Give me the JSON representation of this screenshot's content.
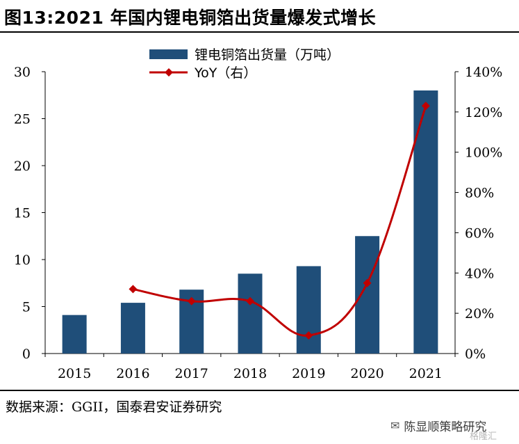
{
  "figure_title": "图13:2021 年国内锂电铜箔出货量爆发式增长",
  "source_note": "数据来源：GGII，国泰君安证券研究",
  "watermark": {
    "text": "陈显顺策略研究",
    "sub": "格隆汇"
  },
  "colors": {
    "bar": "#1f4e79",
    "line": "#c00000"
  },
  "chart_data": {
    "type": "bar",
    "categories": [
      "2015",
      "2016",
      "2017",
      "2018",
      "2019",
      "2020",
      "2021"
    ],
    "series": [
      {
        "name": "锂电铜箔出货量（万吨）",
        "type": "bar",
        "axis": "left",
        "values": [
          4.1,
          5.4,
          6.8,
          8.5,
          9.3,
          12.5,
          28.0
        ]
      },
      {
        "name": "YoY（右）",
        "type": "line",
        "axis": "right",
        "values": [
          null,
          32,
          26,
          26,
          9,
          35,
          123
        ]
      }
    ],
    "y_left": {
      "min": 0,
      "max": 30,
      "ticks": [
        "0",
        "5",
        "10",
        "15",
        "20",
        "25",
        "30"
      ]
    },
    "y_right": {
      "min": 0,
      "max": 140,
      "ticks": [
        "0%",
        "20%",
        "40%",
        "60%",
        "80%",
        "100%",
        "120%",
        "140%"
      ]
    },
    "legend": "top-center",
    "grid": false
  }
}
